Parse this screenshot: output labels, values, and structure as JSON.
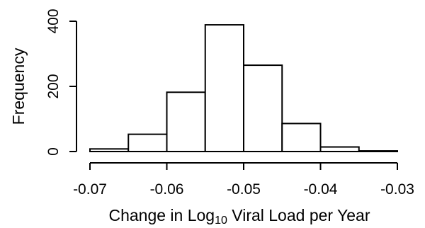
{
  "chart_data": {
    "type": "histogram",
    "title": "",
    "xlabel": {
      "prefix": "Change in Log",
      "subscript": "10",
      "suffix": " Viral Load per Year"
    },
    "ylabel": "Frequency",
    "bins": [
      {
        "x0": -0.07,
        "x1": -0.065,
        "count": 8
      },
      {
        "x0": -0.065,
        "x1": -0.06,
        "count": 53
      },
      {
        "x0": -0.06,
        "x1": -0.055,
        "count": 182
      },
      {
        "x0": -0.055,
        "x1": -0.05,
        "count": 389
      },
      {
        "x0": -0.05,
        "x1": -0.045,
        "count": 265
      },
      {
        "x0": -0.045,
        "x1": -0.04,
        "count": 86
      },
      {
        "x0": -0.04,
        "x1": -0.035,
        "count": 14
      },
      {
        "x0": -0.035,
        "x1": -0.03,
        "count": 2
      }
    ],
    "x_ticks": [
      -0.07,
      -0.06,
      -0.05,
      -0.04,
      -0.03
    ],
    "x_tick_labels": [
      "-0.07",
      "-0.06",
      "-0.05",
      "-0.04",
      "-0.03"
    ],
    "y_ticks": [
      0,
      200,
      400
    ],
    "y_tick_labels": [
      "0",
      "200",
      "400"
    ],
    "xlim": [
      -0.07,
      -0.03
    ],
    "ylim": [
      0,
      400
    ],
    "grid": false,
    "legend": "none"
  }
}
